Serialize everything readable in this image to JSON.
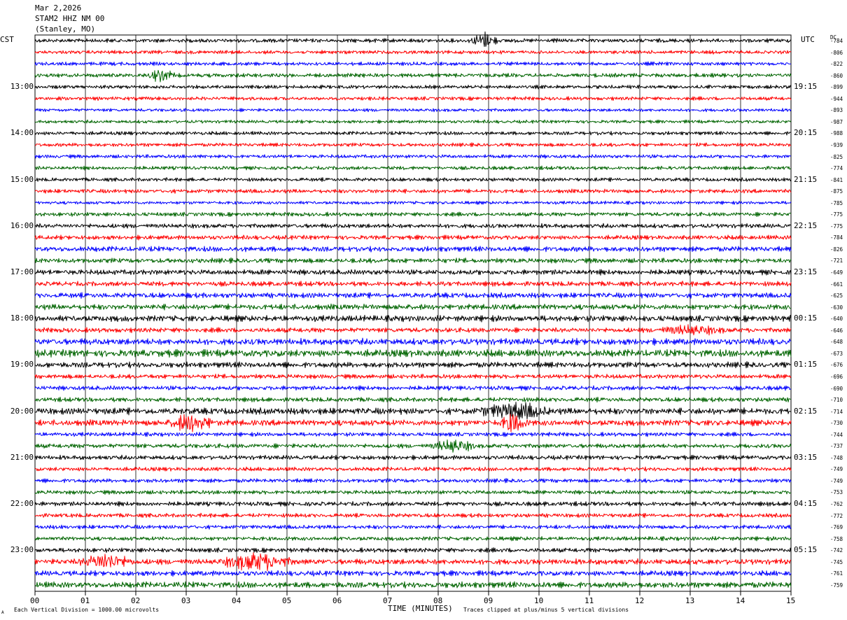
{
  "header": {
    "date": "Mar 2,2026",
    "station": "STAM2 HHZ NM 00",
    "location": "(Stanley, MO)"
  },
  "left_tz": "CST",
  "right_tz": "UTC",
  "dc_label": "DC",
  "footer": {
    "scale_note": "Each Vertical Division = 1000.00 microvolts",
    "clip_note": "Traces clipped at plus/minus 5 vertical divisions",
    "corner_mark": "A"
  },
  "chart_data": {
    "type": "line",
    "title": "",
    "xlabel": "TIME (MINUTES)",
    "ylabel": "",
    "xlim": [
      0,
      15
    ],
    "x_ticks": [
      "00",
      "01",
      "02",
      "03",
      "04",
      "05",
      "06",
      "07",
      "08",
      "09",
      "10",
      "11",
      "12",
      "13",
      "14",
      "15"
    ],
    "trace_colors": [
      "#000000",
      "#ff0000",
      "#0000ff",
      "#006400"
    ],
    "left_hour_labels": [
      "13:00",
      "14:00",
      "15:00",
      "16:00",
      "17:00",
      "18:00",
      "19:00",
      "20:00",
      "21:00",
      "22:00",
      "23:00"
    ],
    "right_hour_labels": [
      "19:15",
      "20:15",
      "21:15",
      "22:15",
      "23:15",
      "00:15",
      "01:15",
      "02:15",
      "03:15",
      "04:15",
      "05:15"
    ],
    "first_labeled_row": 4,
    "rows_per_hour": 4,
    "dc_offsets": [
      -784,
      -806,
      -822,
      -860,
      -899,
      -944,
      -893,
      -987,
      -988,
      -939,
      -825,
      -774,
      -841,
      -875,
      -785,
      -775,
      -775,
      -784,
      -826,
      -721,
      -649,
      -661,
      -625,
      -630,
      -640,
      -646,
      -648,
      -673,
      -676,
      -696,
      -690,
      -710,
      -714,
      -730,
      -744,
      -737,
      -748,
      -749,
      -749,
      -753,
      -762,
      -772,
      -769,
      -758,
      -742,
      -745,
      -761,
      -759
    ],
    "noise_amplitude_divisions": [
      1.0,
      0.9,
      0.9,
      1.0,
      0.9,
      0.9,
      0.8,
      0.8,
      0.9,
      0.9,
      0.9,
      0.9,
      0.9,
      1.0,
      0.8,
      1.0,
      1.1,
      1.1,
      1.3,
      1.2,
      1.3,
      1.2,
      1.3,
      1.4,
      1.5,
      1.2,
      1.6,
      1.8,
      1.4,
      1.1,
      1.1,
      1.1,
      1.6,
      1.5,
      1.0,
      1.1,
      1.1,
      1.0,
      1.0,
      1.0,
      1.1,
      1.0,
      1.0,
      1.0,
      1.1,
      1.4,
      1.3,
      1.5
    ],
    "events": [
      {
        "row": 0,
        "minute": 8.9,
        "duration": 0.3,
        "amplitude": 2.0
      },
      {
        "row": 3,
        "minute": 2.5,
        "duration": 0.3,
        "amplitude": 1.5
      },
      {
        "row": 25,
        "minute": 13.0,
        "duration": 0.8,
        "amplitude": 1.0
      },
      {
        "row": 32,
        "minute": 9.5,
        "duration": 0.8,
        "amplitude": 2.0
      },
      {
        "row": 33,
        "minute": 3.1,
        "duration": 0.5,
        "amplitude": 2.2
      },
      {
        "row": 33,
        "minute": 9.5,
        "duration": 0.3,
        "amplitude": 2.5
      },
      {
        "row": 35,
        "minute": 8.3,
        "duration": 0.5,
        "amplitude": 1.5
      },
      {
        "row": 45,
        "minute": 1.4,
        "duration": 0.6,
        "amplitude": 2.0
      },
      {
        "row": 45,
        "minute": 4.4,
        "duration": 0.8,
        "amplitude": 2.2
      }
    ],
    "notes": "Helicorder: 48 traces, 15 minutes each, colors cycle black/red/blue/green; traces clipped at plus/minus 5 vertical divisions"
  }
}
